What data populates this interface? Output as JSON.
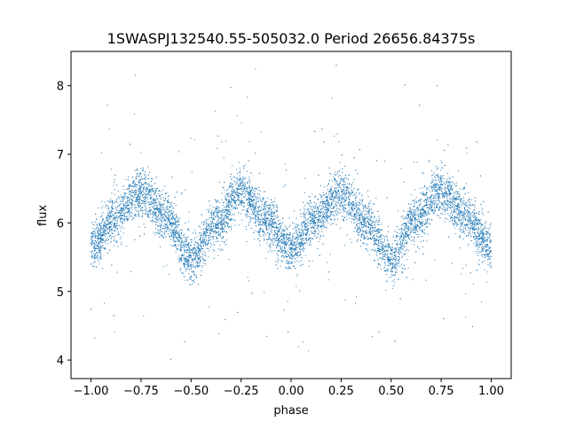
{
  "chart_data": {
    "type": "scatter",
    "title": "1SWASPJ132540.55-505032.0 Period 26656.84375s",
    "xlabel": "phase",
    "ylabel": "flux",
    "xlim": [
      -1.1,
      1.1
    ],
    "ylim": [
      3.73,
      8.5
    ],
    "x_ticks": [
      -1.0,
      -0.75,
      -0.5,
      -0.25,
      0.0,
      0.25,
      0.5,
      0.75,
      1.0
    ],
    "x_tick_labels": [
      "−1.00",
      "−0.75",
      "−0.50",
      "−0.25",
      "0.00",
      "0.25",
      "0.50",
      "0.75",
      "1.00"
    ],
    "y_ticks": [
      4,
      5,
      6,
      7,
      8
    ],
    "y_tick_labels": [
      "4",
      "5",
      "6",
      "7",
      "8"
    ],
    "grid": false,
    "legend": "none",
    "marker_color": "#1f77b4",
    "description_of_points": "dense phase-folded light curve, phase -1 to 1, flux oscillating with two cycles per unit phase",
    "trend_points": {
      "x": [
        -1.0,
        -0.875,
        -0.75,
        -0.625,
        -0.5,
        -0.375,
        -0.25,
        -0.125,
        0.0,
        0.125,
        0.25,
        0.375,
        0.5,
        0.625,
        0.75,
        0.875,
        1.0
      ],
      "y": [
        5.65,
        6.1,
        6.45,
        6.1,
        5.45,
        6.0,
        6.45,
        6.05,
        5.6,
        6.05,
        6.45,
        6.0,
        5.45,
        6.05,
        6.45,
        6.1,
        5.65
      ]
    },
    "band_half_width": 0.28,
    "n_points": 9000
  }
}
